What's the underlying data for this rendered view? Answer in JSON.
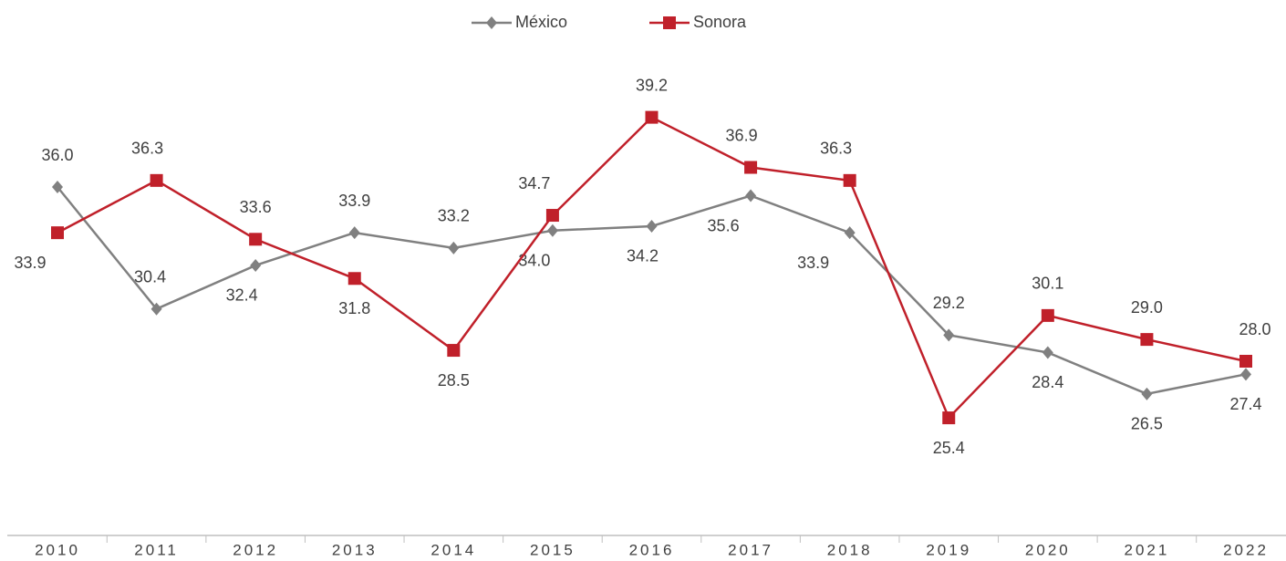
{
  "chart_data": {
    "type": "line",
    "categories": [
      "2010",
      "2011",
      "2012",
      "2013",
      "2014",
      "2015",
      "2016",
      "2017",
      "2018",
      "2019",
      "2020",
      "2021",
      "2022"
    ],
    "series": [
      {
        "name": "México",
        "color": "#808080",
        "marker": "diamond",
        "values": [
          36.0,
          30.4,
          32.4,
          33.9,
          33.2,
          34.0,
          34.2,
          35.6,
          33.9,
          29.2,
          28.4,
          26.5,
          27.4
        ],
        "value_labels": [
          "36.0",
          "30.4",
          "32.4",
          "33.9",
          "33.2",
          "34.0",
          "34.2",
          "35.6",
          "33.9",
          "29.2",
          "28.4",
          "26.5",
          "27.4"
        ]
      },
      {
        "name": "Sonora",
        "color": "#c0202a",
        "marker": "square",
        "values": [
          33.9,
          36.3,
          33.6,
          31.8,
          28.5,
          34.7,
          39.2,
          36.9,
          36.3,
          25.4,
          30.1,
          29.0,
          28.0
        ],
        "value_labels": [
          "33.9",
          "36.3",
          "33.6",
          "31.8",
          "28.5",
          "34.7",
          "39.2",
          "36.9",
          "36.3",
          "25.4",
          "30.1",
          "29.0",
          "28.0"
        ]
      }
    ],
    "ylim": [
      20,
      44
    ]
  }
}
